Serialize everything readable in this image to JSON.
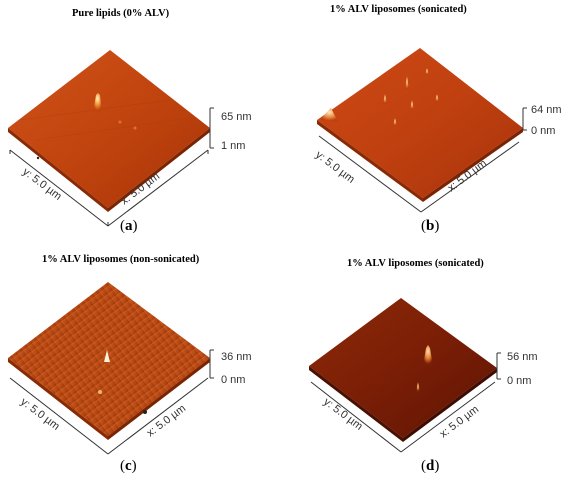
{
  "panels": [
    {
      "id": "a",
      "title": "Pure lipids (0% ALV)",
      "letter": "a",
      "z_max": "65 nm",
      "z_min": "1 nm",
      "y_axis": "y: 5.0 µm",
      "x_axis": "x: 5.0 µm",
      "surface_color": "#c1440e"
    },
    {
      "id": "b",
      "title": "1% ALV liposomes (sonicated)",
      "letter": "b",
      "z_max": "64 nm",
      "z_min": "0 nm",
      "y_axis": "y: 5.0 µm",
      "x_axis": "x: 5.0 µm",
      "surface_color": "#c04010"
    },
    {
      "id": "c",
      "title": "1% ALV liposomes (non-sonicated)",
      "letter": "c",
      "z_max": "36 nm",
      "z_min": "0 nm",
      "y_axis": "y: 5.0 µm",
      "x_axis": "x: 5.0 µm",
      "surface_color": "#b84a14"
    },
    {
      "id": "d",
      "title": "1% ALV liposomes (sonicated)",
      "letter": "d",
      "z_max": "56 nm",
      "z_min": "0 nm",
      "y_axis": "y: 5.0 µm",
      "x_axis": "x: 5.0 µm",
      "surface_color": "#7a1e06"
    }
  ]
}
